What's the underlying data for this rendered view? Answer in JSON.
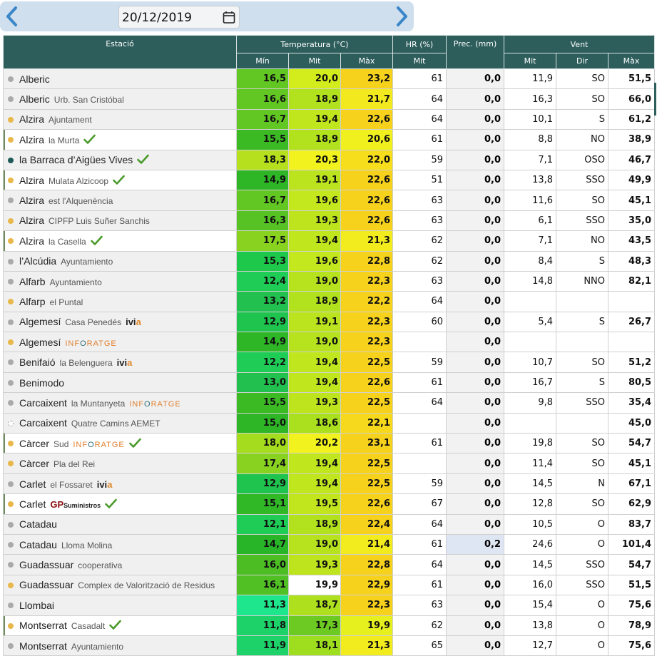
{
  "nav": {
    "date": "20/12/2019"
  },
  "header": {
    "station": "Estació",
    "temperature": "Temperatura (°C)",
    "humidity": "HR (%)",
    "precip": "Prec. (mm)",
    "wind": "Vent",
    "t_min": "Mín",
    "t_mit": "Mit",
    "t_max": "Màx",
    "hr_mit": "Mit",
    "w_mit": "Mit",
    "w_dir": "Dir",
    "w_max": "Màx"
  },
  "colors": {
    "header_bg": "#2d5e5c",
    "dot_yellow": "#e8b84a",
    "dot_grey": "#aaaaaa",
    "dot_teal": "#1d5a57",
    "precip_highlight": "#dfe6f3"
  },
  "rows": [
    {
      "name": "Alberic",
      "sub": "",
      "brand": "",
      "check": false,
      "hl": false,
      "dot": "grey",
      "tmin": "16,5",
      "tmit": "20,0",
      "tmax": "23,2",
      "hr": "61",
      "prec": "0,0",
      "wmit": "11,9",
      "wdir": "SO",
      "wmax": "51,5",
      "cmin": "#62c623",
      "cmit": "#d2ec1c",
      "cmax": "#f6d21c"
    },
    {
      "name": "Alberic",
      "sub": "Urb. San Cristóbal",
      "brand": "",
      "check": false,
      "hl": false,
      "dot": "grey",
      "tmin": "16,6",
      "tmit": "18,9",
      "tmax": "21,7",
      "hr": "64",
      "prec": "0,0",
      "wmit": "16,3",
      "wdir": "SO",
      "wmax": "66,0",
      "cmin": "#62c623",
      "cmit": "#b2e21e",
      "cmax": "#f2ea1e"
    },
    {
      "name": "Alzira",
      "sub": "Ajuntament",
      "brand": "",
      "check": false,
      "hl": false,
      "dot": "yellow",
      "tmin": "16,7",
      "tmit": "19,4",
      "tmax": "22,6",
      "hr": "64",
      "prec": "0,0",
      "wmit": "10,1",
      "wdir": "S",
      "wmax": "61,2",
      "cmin": "#62c623",
      "cmit": "#c0e61e",
      "cmax": "#f6d21c"
    },
    {
      "name": "Alzira",
      "sub": "la Murta",
      "brand": "",
      "check": true,
      "hl": true,
      "dot": "yellow",
      "tmin": "15,5",
      "tmit": "18,9",
      "tmax": "20,6",
      "hr": "61",
      "prec": "0,0",
      "wmit": "8,8",
      "wdir": "NO",
      "wmax": "38,9",
      "cmin": "#3cba24",
      "cmit": "#b2e21e",
      "cmax": "#f0f01e"
    },
    {
      "name": "la Barraca d’Aigües Vives",
      "sub": "",
      "brand": "",
      "check": true,
      "hl": false,
      "dot": "teal",
      "tmin": "18,3",
      "tmit": "20,3",
      "tmax": "22,0",
      "hr": "59",
      "prec": "0,0",
      "wmit": "7,1",
      "wdir": "OSO",
      "wmax": "46,7",
      "cmin": "#b6e01e",
      "cmit": "#f2f21e",
      "cmax": "#f6de1c"
    },
    {
      "name": "Alzira",
      "sub": "Mulata Alzicoop",
      "brand": "",
      "check": true,
      "hl": true,
      "dot": "yellow",
      "tmin": "14,9",
      "tmit": "19,1",
      "tmax": "22,6",
      "hr": "51",
      "prec": "0,0",
      "wmit": "13,8",
      "wdir": "SSO",
      "wmax": "49,9",
      "cmin": "#2eb626",
      "cmit": "#bce41e",
      "cmax": "#f6d21c"
    },
    {
      "name": "Alzira",
      "sub": "est l'Alquenència",
      "brand": "",
      "check": false,
      "hl": false,
      "dot": "grey",
      "tmin": "16,7",
      "tmit": "19,6",
      "tmax": "22,6",
      "hr": "63",
      "prec": "0,0",
      "wmit": "11,6",
      "wdir": "SO",
      "wmax": "45,1",
      "cmin": "#62c623",
      "cmit": "#c4e81e",
      "cmax": "#f6d21c"
    },
    {
      "name": "Alzira",
      "sub": "CIPFP Luis Suñer Sanchis",
      "brand": "",
      "check": false,
      "hl": false,
      "dot": "yellow",
      "tmin": "16,3",
      "tmit": "19,3",
      "tmax": "22,6",
      "hr": "63",
      "prec": "0,0",
      "wmit": "6,1",
      "wdir": "SSO",
      "wmax": "35,0",
      "cmin": "#56c224",
      "cmit": "#bee41e",
      "cmax": "#f6d21c"
    },
    {
      "name": "Alzira",
      "sub": "la Casella",
      "brand": "",
      "check": true,
      "hl": true,
      "dot": "yellow",
      "tmin": "17,5",
      "tmit": "19,4",
      "tmax": "21,3",
      "hr": "62",
      "prec": "0,0",
      "wmit": "7,1",
      "wdir": "NO",
      "wmax": "43,5",
      "cmin": "#8ad220",
      "cmit": "#c0e61e",
      "cmax": "#f2ec1e"
    },
    {
      "name": "l’Alcúdia",
      "sub": "Ayuntamiento",
      "brand": "",
      "check": false,
      "hl": false,
      "dot": "grey",
      "tmin": "15,3",
      "tmit": "19,6",
      "tmax": "22,8",
      "hr": "62",
      "prec": "0,0",
      "wmit": "8,4",
      "wdir": "S",
      "wmax": "48,3",
      "cmin": "#1ec84a",
      "cmit": "#c4e81e",
      "cmax": "#f6d21c"
    },
    {
      "name": "Alfarb",
      "sub": "Ayuntamiento",
      "brand": "",
      "check": false,
      "hl": false,
      "dot": "grey",
      "tmin": "12,4",
      "tmit": "19,0",
      "tmax": "22,3",
      "hr": "63",
      "prec": "0,0",
      "wmit": "14,8",
      "wdir": "NNO",
      "wmax": "82,1",
      "cmin": "#1ecc56",
      "cmit": "#b6e21e",
      "cmax": "#f6d21c"
    },
    {
      "name": "Alfarp",
      "sub": "el Puntal",
      "brand": "",
      "check": false,
      "hl": false,
      "dot": "yellow",
      "tmin": "13,2",
      "tmit": "18,9",
      "tmax": "22,2",
      "hr": "64",
      "prec": "0,0",
      "wmit": "",
      "wdir": "",
      "wmax": "",
      "cmin": "#22c04e",
      "cmit": "#b2e21e",
      "cmax": "#f6d21c"
    },
    {
      "name": "Algemesí",
      "sub": "Casa Penedés",
      "brand": "ivia",
      "check": false,
      "hl": false,
      "dot": "grey",
      "tmin": "12,9",
      "tmit": "19,1",
      "tmax": "22,3",
      "hr": "60",
      "prec": "0,0",
      "wmit": "5,4",
      "wdir": "S",
      "wmax": "26,7",
      "cmin": "#1ec44e",
      "cmit": "#bce41e",
      "cmax": "#f6d21c"
    },
    {
      "name": "Algemesí",
      "sub": "",
      "brand": "inforatge",
      "check": false,
      "hl": false,
      "dot": "yellow",
      "tmin": "14,9",
      "tmit": "19,0",
      "tmax": "22,3",
      "hr": "",
      "prec": "0,0",
      "wmit": "",
      "wdir": "",
      "wmax": "",
      "cmin": "#2eb626",
      "cmit": "#b6e21e",
      "cmax": "#f6d21c"
    },
    {
      "name": "Benifaió",
      "sub": "la Belenguera",
      "brand": "ivia",
      "check": false,
      "hl": false,
      "dot": "grey",
      "tmin": "12,2",
      "tmit": "19,4",
      "tmax": "22,5",
      "hr": "59",
      "prec": "0,0",
      "wmit": "10,7",
      "wdir": "SO",
      "wmax": "51,2",
      "cmin": "#1ecc56",
      "cmit": "#c0e61e",
      "cmax": "#f6d21c"
    },
    {
      "name": "Benimodo",
      "sub": "",
      "brand": "",
      "check": false,
      "hl": false,
      "dot": "grey",
      "tmin": "13,0",
      "tmit": "19,4",
      "tmax": "22,6",
      "hr": "61",
      "prec": "0,0",
      "wmit": "16,7",
      "wdir": "S",
      "wmax": "80,5",
      "cmin": "#22c04e",
      "cmit": "#c0e61e",
      "cmax": "#f6d21c"
    },
    {
      "name": "Carcaixent",
      "sub": "la Muntanyeta",
      "brand": "inforatge",
      "check": false,
      "hl": false,
      "dot": "grey",
      "tmin": "15,5",
      "tmit": "19,3",
      "tmax": "22,5",
      "hr": "64",
      "prec": "0,0",
      "wmit": "9,8",
      "wdir": "SSO",
      "wmax": "35,4",
      "cmin": "#3cba24",
      "cmit": "#bee41e",
      "cmax": "#f6d21c"
    },
    {
      "name": "Carcaixent",
      "sub": "Quatre Camins AEMET",
      "brand": "",
      "check": false,
      "hl": false,
      "dot": "empty",
      "tmin": "15,0",
      "tmit": "18,6",
      "tmax": "22,1",
      "hr": "",
      "prec": "0,0",
      "wmit": "",
      "wdir": "",
      "wmax": "45,0",
      "cmin": "#2eb626",
      "cmit": "#aae01e",
      "cmax": "#f6d81c"
    },
    {
      "name": "Càrcer",
      "sub": "Sud",
      "brand": "inforatge",
      "check": true,
      "hl": true,
      "dot": "yellow",
      "tmin": "18,0",
      "tmit": "20,2",
      "tmax": "23,1",
      "hr": "61",
      "prec": "0,0",
      "wmit": "19,8",
      "wdir": "SO",
      "wmax": "54,7",
      "cmin": "#a6dc1e",
      "cmit": "#f2f21e",
      "cmax": "#f6d21c"
    },
    {
      "name": "Càrcer",
      "sub": "Pla del Rei",
      "brand": "",
      "check": false,
      "hl": false,
      "dot": "yellow",
      "tmin": "17,4",
      "tmit": "19,4",
      "tmax": "22,5",
      "hr": "",
      "prec": "0,0",
      "wmit": "11,4",
      "wdir": "SO",
      "wmax": "45,1",
      "cmin": "#8ad220",
      "cmit": "#c0e61e",
      "cmax": "#f6d21c"
    },
    {
      "name": "Carlet",
      "sub": "el Fossaret",
      "brand": "ivia",
      "check": false,
      "hl": false,
      "dot": "grey",
      "tmin": "12,9",
      "tmit": "19,4",
      "tmax": "22,5",
      "hr": "59",
      "prec": "0,0",
      "wmit": "14,5",
      "wdir": "N",
      "wmax": "67,1",
      "cmin": "#1ec44e",
      "cmit": "#c0e61e",
      "cmax": "#f6d21c"
    },
    {
      "name": "Carlet",
      "sub": "",
      "brand": "gp",
      "check": true,
      "hl": true,
      "dot": "yellow",
      "tmin": "15,1",
      "tmit": "19,5",
      "tmax": "22,6",
      "hr": "67",
      "prec": "0,0",
      "wmit": "12,8",
      "wdir": "SO",
      "wmax": "62,9",
      "cmin": "#30b826",
      "cmit": "#c2e61e",
      "cmax": "#f6d21c"
    },
    {
      "name": "Catadau",
      "sub": "",
      "brand": "",
      "check": false,
      "hl": false,
      "dot": "grey",
      "tmin": "12,1",
      "tmit": "18,9",
      "tmax": "22,4",
      "hr": "64",
      "prec": "0,0",
      "wmit": "10,5",
      "wdir": "O",
      "wmax": "83,7",
      "cmin": "#1ecc56",
      "cmit": "#b2e21e",
      "cmax": "#f6d21c"
    },
    {
      "name": "Catadau",
      "sub": "Lloma Molina",
      "brand": "",
      "check": false,
      "hl": false,
      "dot": "grey",
      "tmin": "14,7",
      "tmit": "19,0",
      "tmax": "21,4",
      "hr": "61",
      "prec": "0,2",
      "wmit": "24,6",
      "wdir": "O",
      "wmax": "101,4",
      "cmin": "#28b628",
      "cmit": "#b6e21e",
      "cmax": "#f2ec1e"
    },
    {
      "name": "Guadassuar",
      "sub": "cooperativa",
      "brand": "",
      "check": false,
      "hl": false,
      "dot": "grey",
      "tmin": "16,0",
      "tmit": "19,3",
      "tmax": "22,8",
      "hr": "64",
      "prec": "0,0",
      "wmit": "14,5",
      "wdir": "SSO",
      "wmax": "54,7",
      "cmin": "#4cbe24",
      "cmit": "#bee41e",
      "cmax": "#f6d21c"
    },
    {
      "name": "Guadassuar",
      "sub": "Complex de Valorització de Residus",
      "brand": "",
      "check": false,
      "hl": false,
      "dot": "yellow",
      "tmin": "16,1",
      "tmit": "19,9",
      "tmax": "22,9",
      "hr": "61",
      "prec": "0,0",
      "wmit": "16,0",
      "wdir": "SSO",
      "wmax": "51,5",
      "cmin": "#50c024",
      "cmit": "#cceа1e",
      "cmax": "#f6d21c"
    },
    {
      "name": "Llombai",
      "sub": "",
      "brand": "",
      "check": false,
      "hl": false,
      "dot": "grey",
      "tmin": "11,3",
      "tmit": "18,7",
      "tmax": "22,3",
      "hr": "63",
      "prec": "0,0",
      "wmit": "15,4",
      "wdir": "O",
      "wmax": "75,6",
      "cmin": "#1ee68c",
      "cmit": "#aee01e",
      "cmax": "#f6d21c"
    },
    {
      "name": "Montserrat",
      "sub": "Casadalt",
      "brand": "",
      "check": true,
      "hl": true,
      "dot": "yellow",
      "tmin": "11,8",
      "tmit": "17,3",
      "tmax": "19,9",
      "hr": "62",
      "prec": "0,0",
      "wmit": "13,8",
      "wdir": "O",
      "wmax": "78,9",
      "cmin": "#1ed26a",
      "cmit": "#6cca22",
      "cmax": "#e6f01e"
    },
    {
      "name": "Montserrat",
      "sub": "Ayuntamiento",
      "brand": "",
      "check": false,
      "hl": false,
      "dot": "grey",
      "tmin": "11,9",
      "tmit": "18,1",
      "tmax": "21,3",
      "hr": "65",
      "prec": "0,0",
      "wmit": "12,7",
      "wdir": "O",
      "wmax": "75,6",
      "cmin": "#1ed26a",
      "cmit": "#9ede1e",
      "cmax": "#f2ec1e"
    }
  ]
}
